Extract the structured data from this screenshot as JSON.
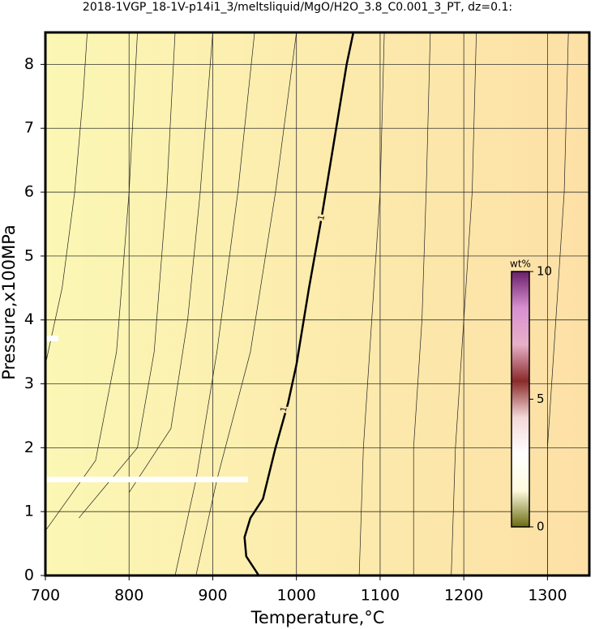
{
  "chart_data": {
    "type": "contour",
    "title": "2018-1VGP_18-1V-p14i1_3/meltsliquid/MgO/H2O_3.8_C0.001_3_PT, dz=0.1:",
    "x_label": "Temperature,°C",
    "y_label": "Pressure,x100MPa",
    "xlim": [
      700,
      1350
    ],
    "ylim": [
      0,
      8.5
    ],
    "xticks": [
      700,
      800,
      900,
      1000,
      1100,
      1200,
      1300
    ],
    "yticks": [
      0,
      1,
      2,
      3,
      4,
      5,
      6,
      7,
      8
    ],
    "grid": true,
    "fill_colors": [
      "#fbf7b4",
      "#fde0a6"
    ],
    "main_contour": {
      "label": "1",
      "color": "#000000",
      "x": [
        955,
        940,
        938,
        945,
        960,
        975,
        990,
        1000,
        1015,
        1030,
        1045,
        1060,
        1068
      ],
      "y": [
        0,
        0.3,
        0.6,
        0.9,
        1.2,
        2.0,
        2.7,
        3.3,
        4.5,
        5.6,
        6.8,
        8.0,
        8.5
      ]
    },
    "contours": [
      {
        "x": [
          700,
          720,
          735,
          745,
          750
        ],
        "y": [
          3.3,
          4.5,
          6,
          7.5,
          8.5
        ]
      },
      {
        "x": [
          700,
          760,
          785,
          800,
          810
        ],
        "y": [
          0.7,
          1.8,
          3.5,
          6,
          8.5
        ]
      },
      {
        "x": [
          740,
          810,
          830,
          845,
          855
        ],
        "y": [
          0.9,
          2.0,
          3.5,
          6,
          8.5
        ]
      },
      {
        "x": [
          800,
          850,
          870,
          885,
          900
        ],
        "y": [
          1.3,
          2.3,
          4,
          6,
          8.5
        ]
      },
      {
        "x": [
          855,
          880,
          905,
          930,
          950
        ],
        "y": [
          0,
          1.5,
          3.5,
          6,
          8.5
        ]
      },
      {
        "x": [
          880,
          905,
          945,
          975,
          1000
        ],
        "y": [
          0,
          1.5,
          3.5,
          6,
          8.5
        ]
      },
      {
        "x": [
          1075,
          1080,
          1090,
          1100,
          1105
        ],
        "y": [
          0,
          2,
          4,
          6,
          8.5
        ]
      },
      {
        "x": [
          1140,
          1140,
          1150,
          1155,
          1160
        ],
        "y": [
          0,
          2,
          4,
          6,
          8.5
        ]
      },
      {
        "x": [
          1185,
          1190,
          1200,
          1210,
          1215
        ],
        "y": [
          0,
          2,
          4,
          6,
          8.5
        ]
      },
      {
        "x": [
          1300,
          1300,
          1310,
          1320,
          1325
        ],
        "y": [
          0,
          2,
          4,
          6,
          8.5
        ]
      }
    ],
    "colorbar": {
      "label": "wt%",
      "lim": [
        0,
        10
      ],
      "ticks": [
        0,
        5,
        10
      ],
      "colors": [
        "#6b6b10",
        "#fffbe0",
        "#ffffff",
        "#f4d8d8",
        "#8a2a2a",
        "#e8b0c8",
        "#d890d0",
        "#6a206a"
      ]
    }
  }
}
